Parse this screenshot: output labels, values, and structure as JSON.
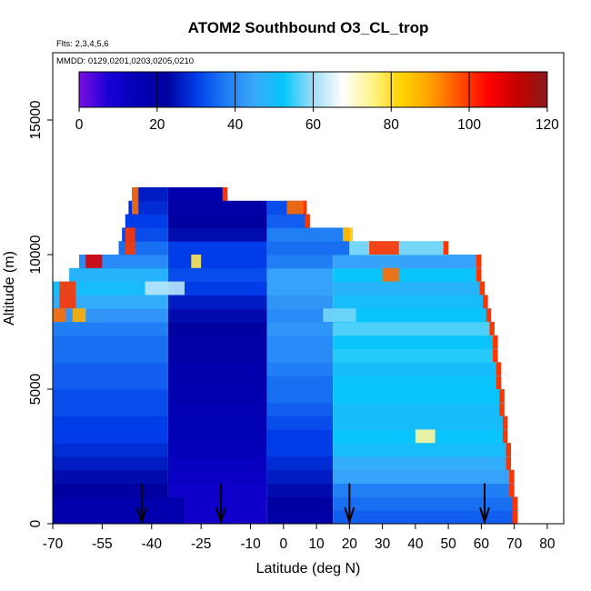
{
  "chart_data": {
    "type": "heatmap",
    "title": "ATOM2 Southbound O3_CL_trop",
    "subtitle_flights": "Flts: 2,3,4,5,6",
    "subtitle_dates": "MMDD: 0129,0201,0203,0205,0210",
    "xlabel": "Latitude (deg N)",
    "ylabel": "Altitude (m)",
    "xlim": [
      -70,
      85
    ],
    "ylim": [
      0,
      17500
    ],
    "x_ticks": [
      "-70",
      "-55",
      "-40",
      "-25",
      "-10",
      "0",
      "10",
      "20",
      "30",
      "40",
      "50",
      "60",
      "70",
      "80"
    ],
    "x_tick_values": [
      -70,
      -55,
      -40,
      -25,
      -10,
      0,
      10,
      20,
      30,
      40,
      50,
      60,
      70,
      80
    ],
    "y_ticks": [
      "0",
      "5000",
      "10000",
      "15000"
    ],
    "y_tick_values": [
      0,
      5000,
      10000,
      15000
    ],
    "colorbar": {
      "min": 0,
      "max": 120,
      "tick_labels": [
        "0",
        "20",
        "40",
        "60",
        "80",
        "100",
        "120"
      ],
      "tick_values": [
        0,
        20,
        40,
        60,
        80,
        100,
        120
      ],
      "colors": [
        "#7b10e0",
        "#1a00d8",
        "#0000b5",
        "#0000a0",
        "#003ce8",
        "#1f7cf5",
        "#3aa8fa",
        "#05c7fb",
        "#9fdcf7",
        "#ffffff",
        "#fff38c",
        "#ffd400",
        "#ffa000",
        "#ff5000",
        "#ff0000",
        "#c40000",
        "#8a1a1a"
      ]
    },
    "profile_arrows_lat": [
      -43,
      -19,
      20,
      61
    ],
    "southern_edge_lat": -70,
    "northern_edge_by_altitude": [
      {
        "alt": 0,
        "lat": 71
      },
      {
        "alt": 1600,
        "lat": 70
      },
      {
        "alt": 2700,
        "lat": 69
      },
      {
        "alt": 3500,
        "lat": 68
      },
      {
        "alt": 4500,
        "lat": 67
      },
      {
        "alt": 5500,
        "lat": 66
      },
      {
        "alt": 6000,
        "lat": 65
      },
      {
        "alt": 7000,
        "lat": 64
      },
      {
        "alt": 8000,
        "lat": 62
      },
      {
        "alt": 9000,
        "lat": 61
      },
      {
        "alt": 9600,
        "lat": 60
      },
      {
        "alt": 10000,
        "lat": 60
      }
    ],
    "bands": [
      {
        "alt0": 0,
        "alt1": 500,
        "segments": [
          {
            "lat0": -70,
            "lat1": -30,
            "value": 17
          },
          {
            "lat0": -30,
            "lat1": -5,
            "value": 10
          },
          {
            "lat0": -5,
            "lat1": 15,
            "value": 20
          },
          {
            "lat0": 15,
            "lat1": 71,
            "value": 34
          }
        ]
      },
      {
        "alt0": 500,
        "alt1": 1000,
        "segments": [
          {
            "lat0": -70,
            "lat1": -30,
            "value": 18
          },
          {
            "lat0": -30,
            "lat1": -5,
            "value": 11
          },
          {
            "lat0": -5,
            "lat1": 15,
            "value": 22
          },
          {
            "lat0": 15,
            "lat1": 71,
            "value": 36
          }
        ]
      },
      {
        "alt0": 1000,
        "alt1": 1500,
        "segments": [
          {
            "lat0": -70,
            "lat1": -35,
            "value": 22
          },
          {
            "lat0": -35,
            "lat1": -5,
            "value": 11
          },
          {
            "lat0": -5,
            "lat1": 15,
            "value": 24
          },
          {
            "lat0": 15,
            "lat1": 70,
            "value": 38
          }
        ]
      },
      {
        "alt0": 1500,
        "alt1": 2000,
        "segments": [
          {
            "lat0": -70,
            "lat1": -35,
            "value": 24
          },
          {
            "lat0": -35,
            "lat1": -5,
            "value": 12
          },
          {
            "lat0": -5,
            "lat1": 15,
            "value": 26
          },
          {
            "lat0": 15,
            "lat1": 70,
            "value": 44
          }
        ]
      },
      {
        "alt0": 2000,
        "alt1": 2500,
        "segments": [
          {
            "lat0": -70,
            "lat1": -35,
            "value": 26
          },
          {
            "lat0": -35,
            "lat1": -5,
            "value": 13
          },
          {
            "lat0": -5,
            "lat1": 15,
            "value": 28
          },
          {
            "lat0": 15,
            "lat1": 69,
            "value": 46
          }
        ]
      },
      {
        "alt0": 2500,
        "alt1": 3000,
        "segments": [
          {
            "lat0": -70,
            "lat1": -35,
            "value": 28
          },
          {
            "lat0": -35,
            "lat1": -5,
            "value": 14
          },
          {
            "lat0": -5,
            "lat1": 15,
            "value": 30
          },
          {
            "lat0": 15,
            "lat1": 69,
            "value": 50
          }
        ]
      },
      {
        "alt0": 3000,
        "alt1": 3500,
        "segments": [
          {
            "lat0": -70,
            "lat1": -35,
            "value": 30
          },
          {
            "lat0": -35,
            "lat1": -5,
            "value": 15
          },
          {
            "lat0": -5,
            "lat1": 15,
            "value": 30
          },
          {
            "lat0": 15,
            "lat1": 68,
            "value": 52
          }
        ]
      },
      {
        "alt0": 3500,
        "alt1": 4000,
        "segments": [
          {
            "lat0": -70,
            "lat1": -35,
            "value": 30
          },
          {
            "lat0": -35,
            "lat1": -5,
            "value": 15
          },
          {
            "lat0": -5,
            "lat1": 15,
            "value": 32
          },
          {
            "lat0": 15,
            "lat1": 68,
            "value": 50
          }
        ]
      },
      {
        "alt0": 4000,
        "alt1": 4500,
        "segments": [
          {
            "lat0": -70,
            "lat1": -35,
            "value": 32
          },
          {
            "lat0": -35,
            "lat1": -5,
            "value": 16
          },
          {
            "lat0": -5,
            "lat1": 15,
            "value": 34
          },
          {
            "lat0": 15,
            "lat1": 67,
            "value": 50
          }
        ]
      },
      {
        "alt0": 4500,
        "alt1": 5000,
        "segments": [
          {
            "lat0": -70,
            "lat1": -35,
            "value": 32
          },
          {
            "lat0": -35,
            "lat1": -5,
            "value": 17
          },
          {
            "lat0": -5,
            "lat1": 15,
            "value": 36
          },
          {
            "lat0": 15,
            "lat1": 67,
            "value": 52
          }
        ]
      },
      {
        "alt0": 5000,
        "alt1": 5500,
        "segments": [
          {
            "lat0": -70,
            "lat1": -35,
            "value": 34
          },
          {
            "lat0": -35,
            "lat1": -5,
            "value": 18
          },
          {
            "lat0": -5,
            "lat1": 15,
            "value": 36
          },
          {
            "lat0": 15,
            "lat1": 66,
            "value": 52
          }
        ]
      },
      {
        "alt0": 5500,
        "alt1": 6000,
        "segments": [
          {
            "lat0": -70,
            "lat1": -35,
            "value": 34
          },
          {
            "lat0": -35,
            "lat1": -5,
            "value": 18
          },
          {
            "lat0": -5,
            "lat1": 15,
            "value": 38
          },
          {
            "lat0": 15,
            "lat1": 66,
            "value": 50
          }
        ]
      },
      {
        "alt0": 6000,
        "alt1": 6500,
        "segments": [
          {
            "lat0": -70,
            "lat1": -35,
            "value": 36
          },
          {
            "lat0": -35,
            "lat1": -5,
            "value": 20
          },
          {
            "lat0": -5,
            "lat1": 15,
            "value": 40
          },
          {
            "lat0": 15,
            "lat1": 65,
            "value": 54
          }
        ]
      },
      {
        "alt0": 6500,
        "alt1": 7000,
        "segments": [
          {
            "lat0": -70,
            "lat1": -35,
            "value": 36
          },
          {
            "lat0": -35,
            "lat1": -5,
            "value": 20
          },
          {
            "lat0": -5,
            "lat1": 15,
            "value": 40
          },
          {
            "lat0": 15,
            "lat1": 65,
            "value": 52
          }
        ]
      },
      {
        "alt0": 7000,
        "alt1": 7500,
        "segments": [
          {
            "lat0": -70,
            "lat1": -35,
            "value": 38
          },
          {
            "lat0": -35,
            "lat1": -5,
            "value": 22
          },
          {
            "lat0": -5,
            "lat1": 15,
            "value": 42
          },
          {
            "lat0": 15,
            "lat1": 64,
            "value": 56
          }
        ]
      },
      {
        "alt0": 7500,
        "alt1": 8000,
        "segments": [
          {
            "lat0": -70,
            "lat1": -35,
            "value": 42
          },
          {
            "lat0": -35,
            "lat1": -5,
            "value": 24
          },
          {
            "lat0": -5,
            "lat1": 15,
            "value": 40
          },
          {
            "lat0": 15,
            "lat1": 63,
            "value": 52
          }
        ]
      },
      {
        "alt0": 8000,
        "alt1": 8500,
        "segments": [
          {
            "lat0": -70,
            "lat1": -35,
            "value": 46
          },
          {
            "lat0": -35,
            "lat1": -5,
            "value": 26
          },
          {
            "lat0": -5,
            "lat1": 15,
            "value": 42
          },
          {
            "lat0": 15,
            "lat1": 62,
            "value": 50
          }
        ]
      },
      {
        "alt0": 8500,
        "alt1": 9000,
        "segments": [
          {
            "lat0": -70,
            "lat1": -35,
            "value": 50
          },
          {
            "lat0": -35,
            "lat1": -5,
            "value": 30
          },
          {
            "lat0": -5,
            "lat1": 15,
            "value": 44
          },
          {
            "lat0": 15,
            "lat1": 61,
            "value": 48
          }
        ]
      },
      {
        "alt0": 9000,
        "alt1": 9500,
        "segments": [
          {
            "lat0": -65,
            "lat1": -35,
            "value": 48
          },
          {
            "lat0": -35,
            "lat1": -5,
            "value": 32
          },
          {
            "lat0": -5,
            "lat1": 15,
            "value": 44
          },
          {
            "lat0": 15,
            "lat1": 60,
            "value": 52
          }
        ]
      },
      {
        "alt0": 9500,
        "alt1": 10000,
        "segments": [
          {
            "lat0": -62,
            "lat1": -35,
            "value": 40
          },
          {
            "lat0": -35,
            "lat1": -5,
            "value": 30
          },
          {
            "lat0": -5,
            "lat1": 15,
            "value": 38
          },
          {
            "lat0": 15,
            "lat1": 60,
            "value": 44
          }
        ]
      },
      {
        "alt0": 10000,
        "alt1": 10500,
        "segments": [
          {
            "lat0": -50,
            "lat1": -35,
            "value": 36
          },
          {
            "lat0": -35,
            "lat1": -5,
            "value": 30
          },
          {
            "lat0": -5,
            "lat1": 20,
            "value": 36
          },
          {
            "lat0": 20,
            "lat1": 50,
            "value": 58
          }
        ]
      },
      {
        "alt0": 10500,
        "alt1": 11000,
        "segments": [
          {
            "lat0": -49,
            "lat1": -35,
            "value": 32
          },
          {
            "lat0": -35,
            "lat1": -5,
            "value": 24
          },
          {
            "lat0": -5,
            "lat1": 20,
            "value": 38
          }
        ]
      },
      {
        "alt0": 11000,
        "alt1": 11500,
        "segments": [
          {
            "lat0": -48,
            "lat1": -35,
            "value": 30
          },
          {
            "lat0": -35,
            "lat1": -5,
            "value": 22
          },
          {
            "lat0": -5,
            "lat1": 8,
            "value": 34
          }
        ]
      },
      {
        "alt0": 11500,
        "alt1": 12000,
        "segments": [
          {
            "lat0": -47,
            "lat1": -35,
            "value": 28
          },
          {
            "lat0": -35,
            "lat1": -5,
            "value": 20
          },
          {
            "lat0": -5,
            "lat1": 7,
            "value": 32
          }
        ]
      },
      {
        "alt0": 12000,
        "alt1": 12500,
        "segments": [
          {
            "lat0": -46,
            "lat1": -35,
            "value": 26
          },
          {
            "lat0": -35,
            "lat1": -17,
            "value": 18
          }
        ]
      }
    ],
    "hotspots": [
      {
        "lat0": -68,
        "lat1": -63,
        "alt0": 8000,
        "alt1": 9000,
        "value": 100
      },
      {
        "lat0": -70,
        "lat1": -66,
        "alt0": 7500,
        "alt1": 8000,
        "value": 95
      },
      {
        "lat0": -64,
        "lat1": -60,
        "alt0": 7500,
        "alt1": 8000,
        "value": 88
      },
      {
        "lat0": -60,
        "lat1": -55,
        "alt0": 9500,
        "alt1": 10000,
        "value": 110
      },
      {
        "lat0": -48,
        "lat1": -45,
        "alt0": 10000,
        "alt1": 11000,
        "value": 100
      },
      {
        "lat0": -46,
        "lat1": -44,
        "alt0": 11500,
        "alt1": 12500,
        "value": 95
      },
      {
        "lat0": 1,
        "lat1": 6,
        "alt0": 11500,
        "alt1": 12000,
        "value": 95
      },
      {
        "lat0": 18,
        "lat1": 21,
        "alt0": 10500,
        "alt1": 11000,
        "value": 85
      },
      {
        "lat0": 26,
        "lat1": 35,
        "alt0": 10000,
        "alt1": 10500,
        "value": 100
      },
      {
        "lat0": 30,
        "lat1": 35,
        "alt0": 9000,
        "alt1": 9500,
        "value": 95
      },
      {
        "lat0": -28,
        "lat1": -25,
        "alt0": 9500,
        "alt1": 10000,
        "value": 78
      },
      {
        "lat0": 40,
        "lat1": 46,
        "alt0": 3000,
        "alt1": 3500,
        "value": 74
      },
      {
        "lat0": -42,
        "lat1": -30,
        "alt0": 8500,
        "alt1": 9000,
        "value": 62
      },
      {
        "lat0": 12,
        "lat1": 22,
        "alt0": 7500,
        "alt1": 8000,
        "value": 58
      }
    ],
    "edge_hot_strip_value": 100,
    "edge_hot_strip_width_deg": 1.5
  }
}
